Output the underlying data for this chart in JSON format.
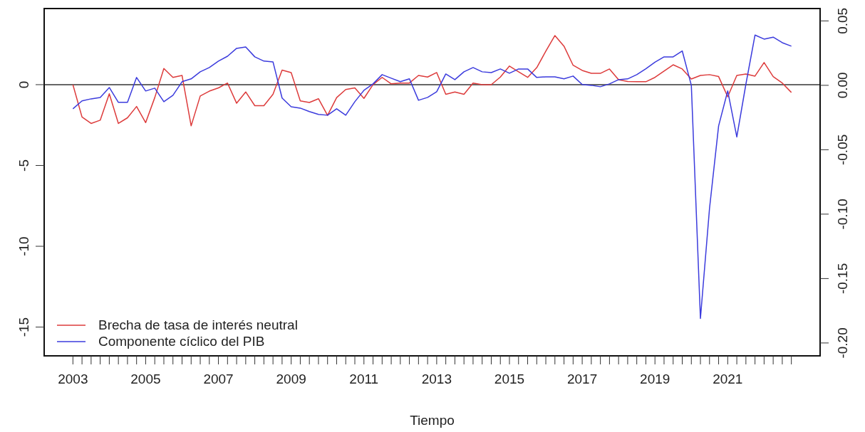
{
  "chart_data": {
    "type": "line",
    "xlabel": "Tiempo",
    "x": [
      2003,
      2003.25,
      2003.5,
      2003.75,
      2004,
      2004.25,
      2004.5,
      2004.75,
      2005,
      2005.25,
      2005.5,
      2005.75,
      2006,
      2006.25,
      2006.5,
      2006.75,
      2007,
      2007.25,
      2007.5,
      2007.75,
      2008,
      2008.25,
      2008.5,
      2008.75,
      2009,
      2009.25,
      2009.5,
      2009.75,
      2010,
      2010.25,
      2010.5,
      2010.75,
      2011,
      2011.25,
      2011.5,
      2011.75,
      2012,
      2012.25,
      2012.5,
      2012.75,
      2013,
      2013.25,
      2013.5,
      2013.75,
      2014,
      2014.25,
      2014.5,
      2014.75,
      2015,
      2015.25,
      2015.5,
      2015.75,
      2016,
      2016.25,
      2016.5,
      2016.75,
      2017,
      2017.25,
      2017.5,
      2017.75,
      2018,
      2018.25,
      2018.5,
      2018.75,
      2019,
      2019.25,
      2019.5,
      2019.75,
      2020,
      2020.25,
      2020.5,
      2020.75,
      2021,
      2021.25,
      2021.5,
      2021.75,
      2022,
      2022.25,
      2022.5,
      2022.75
    ],
    "series": [
      {
        "name": "Brecha de tasa de interés neutral",
        "color": "#dd3b3b",
        "values": [
          0,
          -2.0,
          -2.4,
          -2.2,
          -0.56,
          -2.4,
          -2.05,
          -1.35,
          -2.35,
          -0.8,
          1.0,
          0.45,
          0.57,
          -2.55,
          -0.7,
          -0.4,
          -0.2,
          0.1,
          -1.15,
          -0.45,
          -1.3,
          -1.3,
          -0.6,
          0.9,
          0.75,
          -1.0,
          -1.1,
          -0.87,
          -1.9,
          -0.8,
          -0.3,
          -0.2,
          -0.85,
          0,
          0.45,
          0.05,
          0.1,
          0.1,
          0.57,
          0.47,
          0.75,
          -0.6,
          -0.45,
          -0.6,
          0.1,
          0,
          0,
          0.47,
          1.15,
          0.8,
          0.45,
          1.05,
          2.07,
          3.04,
          2.38,
          1.2,
          0.88,
          0.7,
          0.7,
          0.97,
          0.31,
          0.2,
          0.18,
          0.18,
          0.45,
          0.84,
          1.23,
          0.97,
          0.35,
          0.57,
          0.62,
          0.5,
          -0.75,
          0.57,
          0.66,
          0.53,
          1.37,
          0.5,
          0.1,
          -0.48
        ]
      },
      {
        "name": "Componente cíclico del PIB",
        "color": "#3b3bdd",
        "axis": "y2",
        "values": [
          -0.0182,
          -0.0121,
          -0.0105,
          -0.0094,
          -0.0017,
          -0.0132,
          -0.0132,
          0.0061,
          -0.0044,
          -0.0022,
          -0.0127,
          -0.0077,
          0.0028,
          0.005,
          0.0105,
          0.0138,
          0.0188,
          0.0226,
          0.0287,
          0.0298,
          0.0221,
          0.0188,
          0.0182,
          -0.0099,
          -0.0166,
          -0.0177,
          -0.0204,
          -0.0226,
          -0.0232,
          -0.0182,
          -0.0232,
          -0.0127,
          -0.0039,
          0.0011,
          0.0083,
          0.0055,
          0.0028,
          0.005,
          -0.0116,
          -0.0094,
          -0.005,
          0.0088,
          0.0044,
          0.0105,
          0.0138,
          0.0105,
          0.0099,
          0.0127,
          0.0094,
          0.0127,
          0.0127,
          0.0061,
          0.0066,
          0.0066,
          0.005,
          0.0072,
          0.0006,
          0,
          -0.0011,
          0.0011,
          0.0044,
          0.005,
          0.0083,
          0.0129,
          0.018,
          0.0221,
          0.0221,
          0.0267,
          0,
          -0.181,
          -0.0955,
          -0.0315,
          -0.0043,
          -0.0401,
          0.0009,
          0.039,
          0.0359,
          0.0374,
          0.0331,
          0.0304
        ]
      }
    ],
    "xlim": [
      2002.21,
      2023.54
    ],
    "xticks": [
      {
        "value": 2003,
        "label": "2003"
      },
      {
        "value": 2003.25,
        "label": null
      },
      {
        "value": 2003.5,
        "label": null
      },
      {
        "value": 2003.75,
        "label": null
      },
      {
        "value": 2004,
        "label": null
      },
      {
        "value": 2004.25,
        "label": null
      },
      {
        "value": 2004.5,
        "label": null
      },
      {
        "value": 2004.75,
        "label": null
      },
      {
        "value": 2005,
        "label": "2005"
      },
      {
        "value": 2005.25,
        "label": null
      },
      {
        "value": 2005.5,
        "label": null
      },
      {
        "value": 2005.75,
        "label": null
      },
      {
        "value": 2006,
        "label": null
      },
      {
        "value": 2006.25,
        "label": null
      },
      {
        "value": 2006.5,
        "label": null
      },
      {
        "value": 2006.75,
        "label": null
      },
      {
        "value": 2007,
        "label": "2007"
      },
      {
        "value": 2007.25,
        "label": null
      },
      {
        "value": 2007.5,
        "label": null
      },
      {
        "value": 2007.75,
        "label": null
      },
      {
        "value": 2008,
        "label": null
      },
      {
        "value": 2008.25,
        "label": null
      },
      {
        "value": 2008.5,
        "label": null
      },
      {
        "value": 2008.75,
        "label": null
      },
      {
        "value": 2009,
        "label": "2009"
      },
      {
        "value": 2009.25,
        "label": null
      },
      {
        "value": 2009.5,
        "label": null
      },
      {
        "value": 2009.75,
        "label": null
      },
      {
        "value": 2010,
        "label": null
      },
      {
        "value": 2010.25,
        "label": null
      },
      {
        "value": 2010.5,
        "label": null
      },
      {
        "value": 2010.75,
        "label": null
      },
      {
        "value": 2011,
        "label": "2011"
      },
      {
        "value": 2011.25,
        "label": null
      },
      {
        "value": 2011.5,
        "label": null
      },
      {
        "value": 2011.75,
        "label": null
      },
      {
        "value": 2012,
        "label": null
      },
      {
        "value": 2012.25,
        "label": null
      },
      {
        "value": 2012.5,
        "label": null
      },
      {
        "value": 2012.75,
        "label": null
      },
      {
        "value": 2013,
        "label": "2013"
      },
      {
        "value": 2013.25,
        "label": null
      },
      {
        "value": 2013.5,
        "label": null
      },
      {
        "value": 2013.75,
        "label": null
      },
      {
        "value": 2014,
        "label": null
      },
      {
        "value": 2014.25,
        "label": null
      },
      {
        "value": 2014.5,
        "label": null
      },
      {
        "value": 2014.75,
        "label": null
      },
      {
        "value": 2015,
        "label": "2015"
      },
      {
        "value": 2015.25,
        "label": null
      },
      {
        "value": 2015.5,
        "label": null
      },
      {
        "value": 2015.75,
        "label": null
      },
      {
        "value": 2016,
        "label": null
      },
      {
        "value": 2016.25,
        "label": null
      },
      {
        "value": 2016.5,
        "label": null
      },
      {
        "value": 2016.75,
        "label": null
      },
      {
        "value": 2017,
        "label": "2017"
      },
      {
        "value": 2017.25,
        "label": null
      },
      {
        "value": 2017.5,
        "label": null
      },
      {
        "value": 2017.75,
        "label": null
      },
      {
        "value": 2018,
        "label": null
      },
      {
        "value": 2018.25,
        "label": null
      },
      {
        "value": 2018.5,
        "label": null
      },
      {
        "value": 2018.75,
        "label": null
      },
      {
        "value": 2019,
        "label": "2019"
      },
      {
        "value": 2019.25,
        "label": null
      },
      {
        "value": 2019.5,
        "label": null
      },
      {
        "value": 2019.75,
        "label": null
      },
      {
        "value": 2020,
        "label": null
      },
      {
        "value": 2020.25,
        "label": null
      },
      {
        "value": 2020.5,
        "label": null
      },
      {
        "value": 2020.75,
        "label": null
      },
      {
        "value": 2021,
        "label": "2021"
      },
      {
        "value": 2021.25,
        "label": null
      },
      {
        "value": 2021.5,
        "label": null
      },
      {
        "value": 2021.75,
        "label": null
      },
      {
        "value": 2022,
        "label": null
      },
      {
        "value": 2022.25,
        "label": null
      },
      {
        "value": 2022.5,
        "label": null
      },
      {
        "value": 2022.75,
        "label": null
      }
    ],
    "ylim": [
      -16.78,
      4.71
    ],
    "yticks": [
      -15,
      -10,
      -5,
      0
    ],
    "y2lim": [
      -0.21,
      0.0596
    ],
    "y2ticks": [
      {
        "value": -0.2,
        "label": "-0.20"
      },
      {
        "value": -0.15,
        "label": "-0.15"
      },
      {
        "value": -0.1,
        "label": "-0.10"
      },
      {
        "value": -0.05,
        "label": "-0.05"
      },
      {
        "value": 0,
        "label": "0.00"
      },
      {
        "value": 0.05,
        "label": "0.05"
      }
    ],
    "ref_lines": [
      {
        "axis": "y",
        "value": 0,
        "color": "#666666"
      }
    ],
    "legend": "bottom left",
    "grid": false,
    "marker": "none",
    "line_style": "solid"
  }
}
